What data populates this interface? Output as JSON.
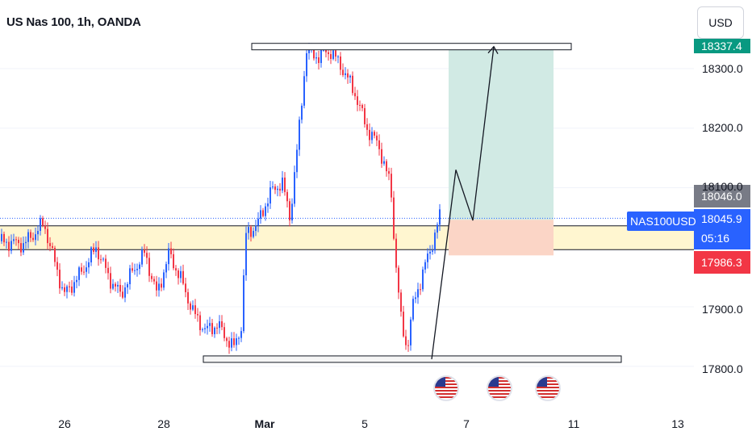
{
  "header": {
    "title": "US Nas 100, 1h, OANDA",
    "currency": "USD"
  },
  "price_axis": {
    "ticks": [
      "18300.0",
      "18200.0",
      "18100.0",
      "17900.0",
      "17800.0"
    ],
    "tick_values": [
      18300,
      18200,
      18100,
      17900,
      17800
    ],
    "target_label": "18337.4",
    "target_color": "#089981",
    "entry_label": "18046.0",
    "entry_color": "#787b86",
    "current_price": "18045.9",
    "countdown": "05:16",
    "current_color": "#2962ff",
    "stop_label": "17986.3",
    "stop_color": "#f23645",
    "symbol": "NAS100USD"
  },
  "time_axis": {
    "ticks": [
      "26",
      "28",
      "Mar",
      "5",
      "7",
      "11",
      "13"
    ]
  },
  "events": {
    "icon": "us-flag-icon",
    "count": 3
  },
  "chart_data": {
    "type": "candlestick",
    "symbol": "US Nas 100",
    "interval": "1h",
    "source": "OANDA",
    "y_range": [
      17790,
      18360
    ],
    "x_dates": [
      "26",
      "28",
      "Mar",
      "5",
      "7",
      "11",
      "13"
    ],
    "last_price": 18045.9,
    "resistance_zone_price": 18337,
    "support_zone_price": 17812,
    "demand_zone": [
      17996,
      18036
    ],
    "long_position": {
      "entry": 18046.0,
      "target": 18337.4,
      "stop": 17986.3
    },
    "projected_path": [
      17812,
      18130,
      18045,
      18337
    ],
    "colors": {
      "up_candle": "#2962ff",
      "down_candle": "#f23645",
      "profit_zone": "#d1eae4",
      "loss_zone": "#fbd5c6",
      "demand_zone": "#fff6d0"
    }
  }
}
